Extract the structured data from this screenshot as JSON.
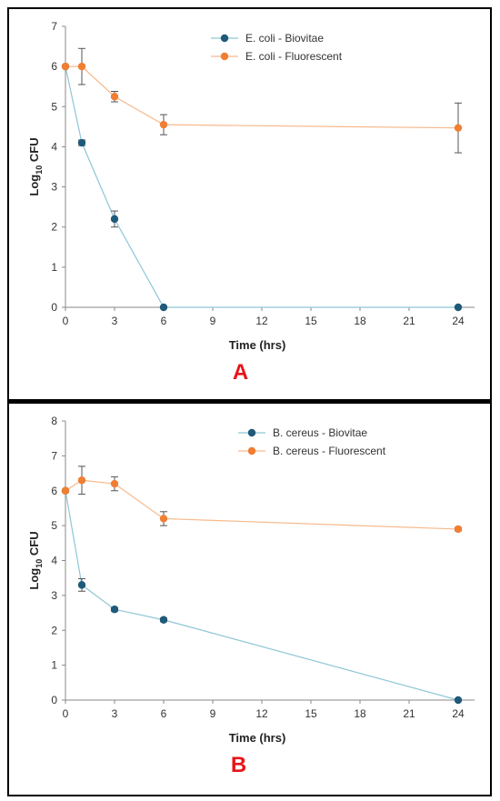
{
  "chart_data": [
    {
      "type": "line",
      "panel_label": "A",
      "xlabel": "Time (hrs)",
      "ylabel_main": "Log",
      "ylabel_sub": "10",
      "ylabel_tail": " CFU",
      "xlim": [
        0,
        25
      ],
      "ylim": [
        0,
        7
      ],
      "xticks": [
        0,
        3,
        6,
        9,
        12,
        15,
        18,
        21,
        24
      ],
      "yticks": [
        0,
        1,
        2,
        3,
        4,
        5,
        6,
        7
      ],
      "legend_position": "top-right",
      "series": [
        {
          "name": "E. coli - Biovitae",
          "color": "#1f5a7a",
          "line_color": "#8ec6d6",
          "x": [
            0,
            1,
            3,
            6,
            24
          ],
          "y": [
            6.0,
            4.1,
            2.2,
            0.0,
            0.0
          ],
          "err": [
            0,
            0.07,
            0.2,
            0,
            0
          ]
        },
        {
          "name": "E. coli - Fluorescent",
          "color": "#f07e33",
          "line_color": "#f6b98c",
          "x": [
            0,
            1,
            3,
            6,
            24
          ],
          "y": [
            6.0,
            6.0,
            5.25,
            4.55,
            4.47
          ],
          "err": [
            0,
            0.45,
            0.13,
            0.25,
            0.62
          ]
        }
      ]
    },
    {
      "type": "line",
      "panel_label": "B",
      "xlabel": "Time (hrs)",
      "ylabel_main": "Log",
      "ylabel_sub": "10",
      "ylabel_tail": " CFU",
      "xlim": [
        0,
        25
      ],
      "ylim": [
        0,
        8
      ],
      "xticks": [
        0,
        3,
        6,
        9,
        12,
        15,
        18,
        21,
        24
      ],
      "yticks": [
        0,
        1,
        2,
        3,
        4,
        5,
        6,
        7,
        8
      ],
      "legend_position": "top-right",
      "series": [
        {
          "name": "B. cereus - Biovitae",
          "color": "#1f5a7a",
          "line_color": "#8ec6d6",
          "x": [
            0,
            1,
            3,
            6,
            24
          ],
          "y": [
            6.0,
            3.3,
            2.6,
            2.3,
            0.0
          ],
          "err": [
            0,
            0.18,
            0.05,
            0.05,
            0
          ]
        },
        {
          "name": "B. cereus - Fluorescent",
          "color": "#f07e33",
          "line_color": "#f6b98c",
          "x": [
            0,
            1,
            3,
            6,
            24
          ],
          "y": [
            6.0,
            6.3,
            6.2,
            5.2,
            4.9
          ],
          "err": [
            0,
            0.4,
            0.2,
            0.2,
            0.05
          ]
        }
      ]
    }
  ]
}
